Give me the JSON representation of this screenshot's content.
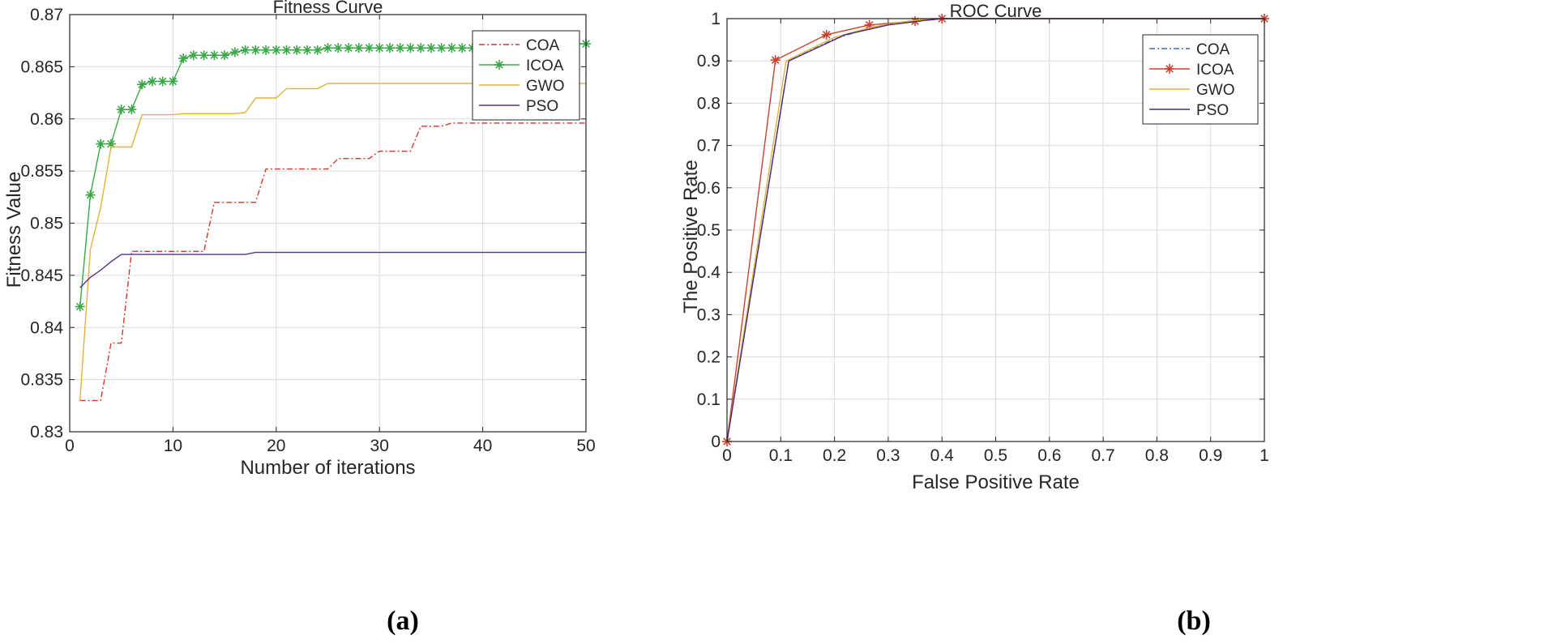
{
  "captions": [
    "(a)",
    "(b)"
  ],
  "chart_data": [
    {
      "type": "line",
      "title": "Fitness Curve",
      "xlabel": "Number of iterations",
      "ylabel": "Fitness Value",
      "xlim": [
        0,
        50
      ],
      "ylim": [
        0.83,
        0.87
      ],
      "xticks": [
        0,
        10,
        20,
        30,
        40,
        50
      ],
      "yticks": [
        0.83,
        0.835,
        0.84,
        0.845,
        0.85,
        0.855,
        0.86,
        0.865,
        0.87
      ],
      "ytick_labels": [
        "0.83",
        "0.835",
        "0.84",
        "0.845",
        "0.85",
        "0.855",
        "0.86",
        "0.865",
        "0.87"
      ],
      "grid": true,
      "legend_position": "top-right",
      "series": [
        {
          "name": "COA",
          "color": "#d6352a",
          "style": "dashdot",
          "marker": "none",
          "x": [
            1,
            2,
            3,
            4,
            5,
            6,
            7,
            8,
            9,
            10,
            11,
            12,
            13,
            14,
            15,
            16,
            17,
            18,
            19,
            20,
            21,
            22,
            23,
            24,
            25,
            26,
            27,
            28,
            29,
            30,
            31,
            32,
            33,
            34,
            35,
            36,
            37,
            38,
            39,
            40,
            41,
            42,
            43,
            44,
            45,
            46,
            47,
            48,
            49,
            50
          ],
          "y": [
            0.833,
            0.833,
            0.833,
            0.8385,
            0.8385,
            0.8473,
            0.8473,
            0.8473,
            0.8473,
            0.8473,
            0.8473,
            0.8473,
            0.8473,
            0.852,
            0.852,
            0.852,
            0.852,
            0.852,
            0.8552,
            0.8552,
            0.8552,
            0.8552,
            0.8552,
            0.8552,
            0.8552,
            0.8562,
            0.8562,
            0.8562,
            0.8562,
            0.8569,
            0.8569,
            0.8569,
            0.8569,
            0.8593,
            0.8593,
            0.8593,
            0.8596,
            0.8596,
            0.8596,
            0.8596,
            0.8596,
            0.8596,
            0.8596,
            0.8596,
            0.8596,
            0.8596,
            0.8596,
            0.8596,
            0.8596,
            0.8596
          ]
        },
        {
          "name": "ICOA",
          "color": "#3aa847",
          "style": "solid",
          "marker": "asterisk",
          "x": [
            1,
            2,
            3,
            4,
            5,
            6,
            7,
            8,
            9,
            10,
            11,
            12,
            13,
            14,
            15,
            16,
            17,
            18,
            19,
            20,
            21,
            22,
            23,
            24,
            25,
            26,
            27,
            28,
            29,
            30,
            31,
            32,
            33,
            34,
            35,
            36,
            37,
            38,
            39,
            40,
            41,
            42,
            43,
            44,
            45,
            46,
            47,
            48,
            49,
            50
          ],
          "y": [
            0.842,
            0.8527,
            0.8576,
            0.8576,
            0.8609,
            0.8609,
            0.8633,
            0.8636,
            0.8636,
            0.8636,
            0.8658,
            0.8661,
            0.8661,
            0.8661,
            0.8661,
            0.8664,
            0.8666,
            0.8666,
            0.8666,
            0.8666,
            0.8666,
            0.8666,
            0.8666,
            0.8666,
            0.8668,
            0.8668,
            0.8668,
            0.8668,
            0.8668,
            0.8668,
            0.8668,
            0.8668,
            0.8668,
            0.8668,
            0.8668,
            0.8668,
            0.8668,
            0.8668,
            0.8668,
            0.8668,
            0.8668,
            0.8668,
            0.8668,
            0.8668,
            0.8668,
            0.8668,
            0.8668,
            0.8668,
            0.8672,
            0.8672
          ]
        },
        {
          "name": "GWO",
          "color": "#e2b23a",
          "style": "solid",
          "marker": "none",
          "x": [
            1,
            2,
            3,
            4,
            5,
            6,
            7,
            8,
            9,
            10,
            11,
            12,
            13,
            14,
            15,
            16,
            17,
            18,
            19,
            20,
            21,
            22,
            23,
            24,
            25,
            26,
            27,
            28,
            29,
            30,
            31,
            32,
            33,
            34,
            35,
            36,
            37,
            38,
            39,
            40,
            41,
            42,
            43,
            44,
            45,
            46,
            47,
            48,
            49,
            50
          ],
          "y": [
            0.833,
            0.8475,
            0.8515,
            0.8573,
            0.8573,
            0.8573,
            0.8604,
            0.8604,
            0.8604,
            0.8604,
            0.8605,
            0.8605,
            0.8605,
            0.8605,
            0.8605,
            0.8605,
            0.8606,
            0.862,
            0.862,
            0.862,
            0.8629,
            0.8629,
            0.8629,
            0.8629,
            0.8634,
            0.8634,
            0.8634,
            0.8634,
            0.8634,
            0.8634,
            0.8634,
            0.8634,
            0.8634,
            0.8634,
            0.8634,
            0.8634,
            0.8634,
            0.8634,
            0.8634,
            0.8634,
            0.8634,
            0.8634,
            0.8634,
            0.8634,
            0.8634,
            0.8634,
            0.8634,
            0.8634,
            0.8634,
            0.8634
          ]
        },
        {
          "name": "PSO",
          "color": "#5b2d8e",
          "style": "solid",
          "marker": "none",
          "x": [
            1,
            2,
            3,
            4,
            5,
            6,
            7,
            8,
            9,
            10,
            11,
            12,
            13,
            14,
            15,
            16,
            17,
            18,
            19,
            20,
            21,
            22,
            23,
            24,
            25,
            26,
            27,
            28,
            29,
            30,
            31,
            32,
            33,
            34,
            35,
            36,
            37,
            38,
            39,
            40,
            41,
            42,
            43,
            44,
            45,
            46,
            47,
            48,
            49,
            50
          ],
          "y": [
            0.8438,
            0.8448,
            0.8455,
            0.8463,
            0.847,
            0.847,
            0.847,
            0.847,
            0.847,
            0.847,
            0.847,
            0.847,
            0.847,
            0.847,
            0.847,
            0.847,
            0.847,
            0.8472,
            0.8472,
            0.8472,
            0.8472,
            0.8472,
            0.8472,
            0.8472,
            0.8472,
            0.8472,
            0.8472,
            0.8472,
            0.8472,
            0.8472,
            0.8472,
            0.8472,
            0.8472,
            0.8472,
            0.8472,
            0.8472,
            0.8472,
            0.8472,
            0.8472,
            0.8472,
            0.8472,
            0.8472,
            0.8472,
            0.8472,
            0.8472,
            0.8472,
            0.8472,
            0.8472,
            0.8472,
            0.8472
          ]
        }
      ]
    },
    {
      "type": "line",
      "title": "ROC Curve",
      "xlabel": "False Positive Rate",
      "ylabel": "The Positive Rate",
      "xlim": [
        0,
        1
      ],
      "ylim": [
        0,
        1
      ],
      "xticks": [
        0,
        0.1,
        0.2,
        0.3,
        0.4,
        0.5,
        0.6,
        0.7,
        0.8,
        0.9,
        1
      ],
      "yticks": [
        0,
        0.1,
        0.2,
        0.3,
        0.4,
        0.5,
        0.6,
        0.7,
        0.8,
        0.9,
        1
      ],
      "xtick_labels": [
        "0",
        "0.1",
        "0.2",
        "0.3",
        "0.4",
        "0.5",
        "0.6",
        "0.7",
        "0.8",
        "0.9",
        "1"
      ],
      "ytick_labels": [
        "0",
        "0.1",
        "0.2",
        "0.3",
        "0.4",
        "0.5",
        "0.6",
        "0.7",
        "0.8",
        "0.9",
        "1"
      ],
      "grid": true,
      "legend_position": "top-right",
      "series": [
        {
          "name": "COA",
          "color": "#2f6fb5",
          "style": "dashdot",
          "marker": "none",
          "x": [
            0,
            0.115,
            0.2,
            0.27,
            0.34,
            0.4,
            1
          ],
          "y": [
            0,
            0.9,
            0.952,
            0.98,
            0.993,
            1,
            1
          ]
        },
        {
          "name": "ICOA",
          "color": "#c9422f",
          "style": "solid",
          "marker": "asterisk",
          "x": [
            0,
            0.09,
            0.185,
            0.265,
            0.35,
            0.4,
            1
          ],
          "y": [
            0,
            0.902,
            0.962,
            0.985,
            0.994,
            1,
            1
          ]
        },
        {
          "name": "GWO",
          "color": "#e2b23a",
          "style": "solid",
          "marker": "none",
          "x": [
            0,
            0.11,
            0.2,
            0.27,
            0.33,
            0.38,
            1
          ],
          "y": [
            0,
            0.9,
            0.956,
            0.98,
            0.993,
            1,
            1
          ]
        },
        {
          "name": "PSO",
          "color": "#4b2a7a",
          "style": "solid",
          "marker": "none",
          "x": [
            0,
            0.115,
            0.22,
            0.3,
            0.37,
            0.4,
            1
          ],
          "y": [
            0,
            0.9,
            0.962,
            0.985,
            0.996,
            1,
            1
          ]
        }
      ]
    }
  ]
}
